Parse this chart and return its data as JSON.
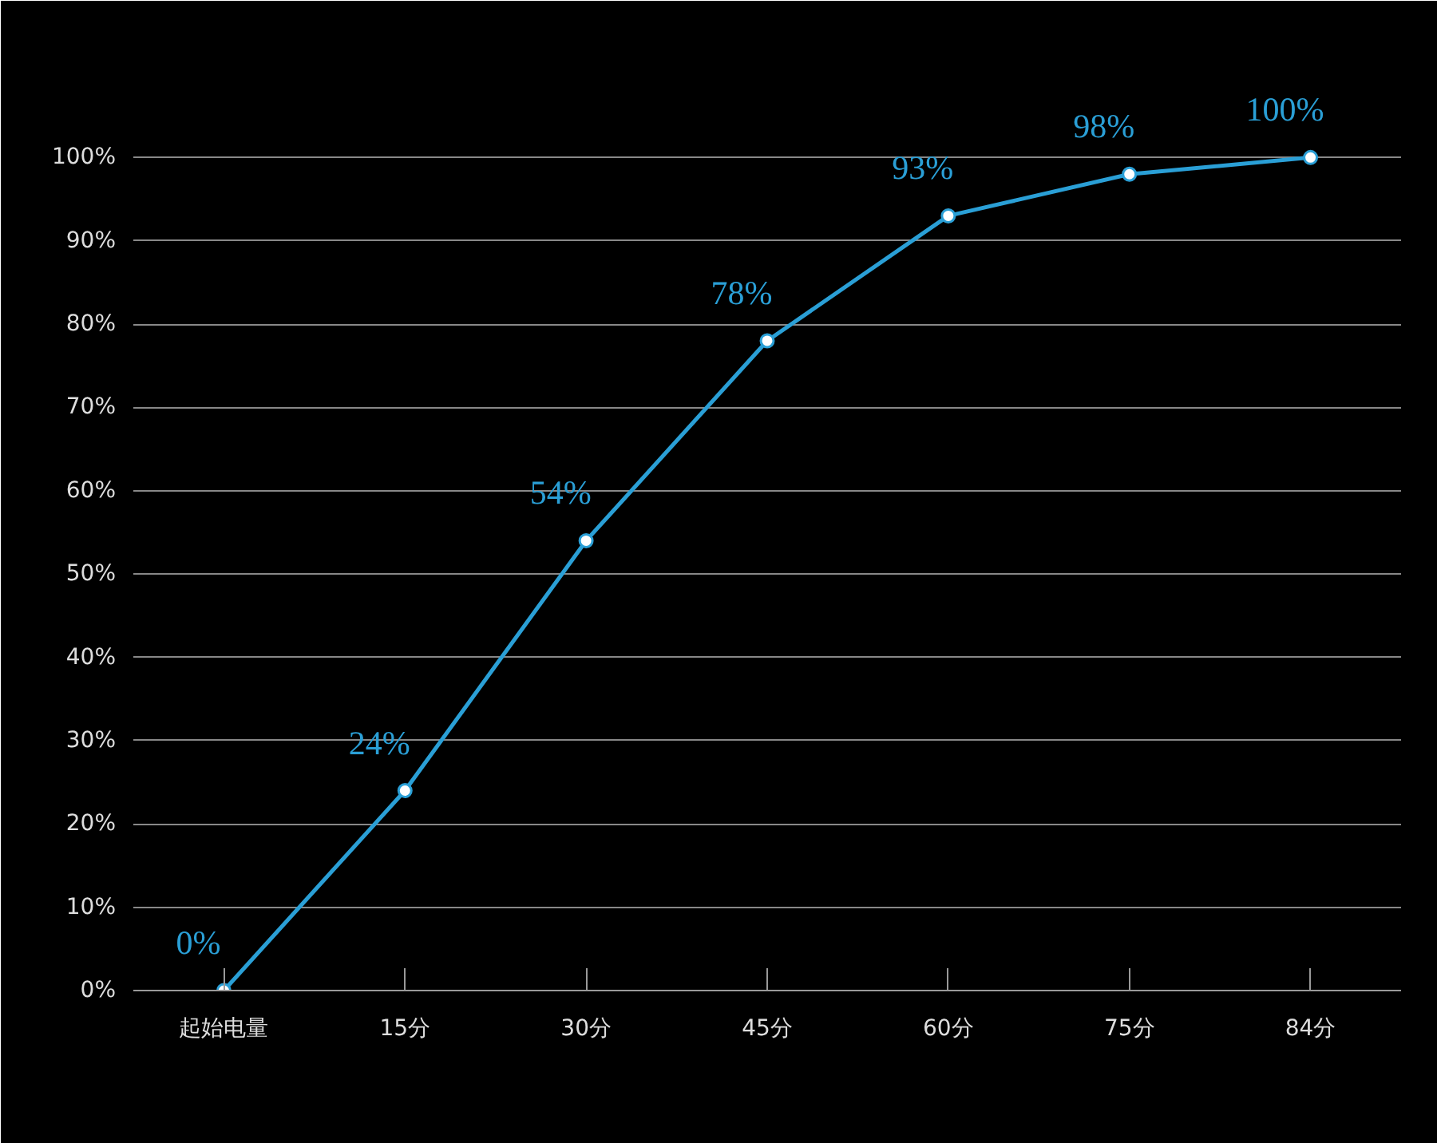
{
  "chart_data": {
    "type": "line",
    "categories": [
      "起始电量",
      "15分",
      "30分",
      "45分",
      "60分",
      "75分",
      "84分"
    ],
    "values": [
      0,
      24,
      54,
      78,
      93,
      98,
      100
    ],
    "value_labels": [
      "0%",
      "24%",
      "54%",
      "78%",
      "93%",
      "98%",
      "100%"
    ],
    "color": "#2a9fd6",
    "marker": "circle",
    "line_style": "solid",
    "ylim": [
      0,
      110
    ],
    "yticks": [
      {
        "value": 0,
        "label": "0%"
      },
      {
        "value": 10,
        "label": "10%"
      },
      {
        "value": 20,
        "label": "20%"
      },
      {
        "value": 30,
        "label": "30%"
      },
      {
        "value": 40,
        "label": "40%"
      },
      {
        "value": 50,
        "label": "50%"
      },
      {
        "value": 60,
        "label": "60%"
      },
      {
        "value": 70,
        "label": "70%"
      },
      {
        "value": 80,
        "label": "80%"
      },
      {
        "value": 90,
        "label": "90%"
      },
      {
        "value": 100,
        "label": "100%"
      }
    ],
    "grid": "y"
  }
}
